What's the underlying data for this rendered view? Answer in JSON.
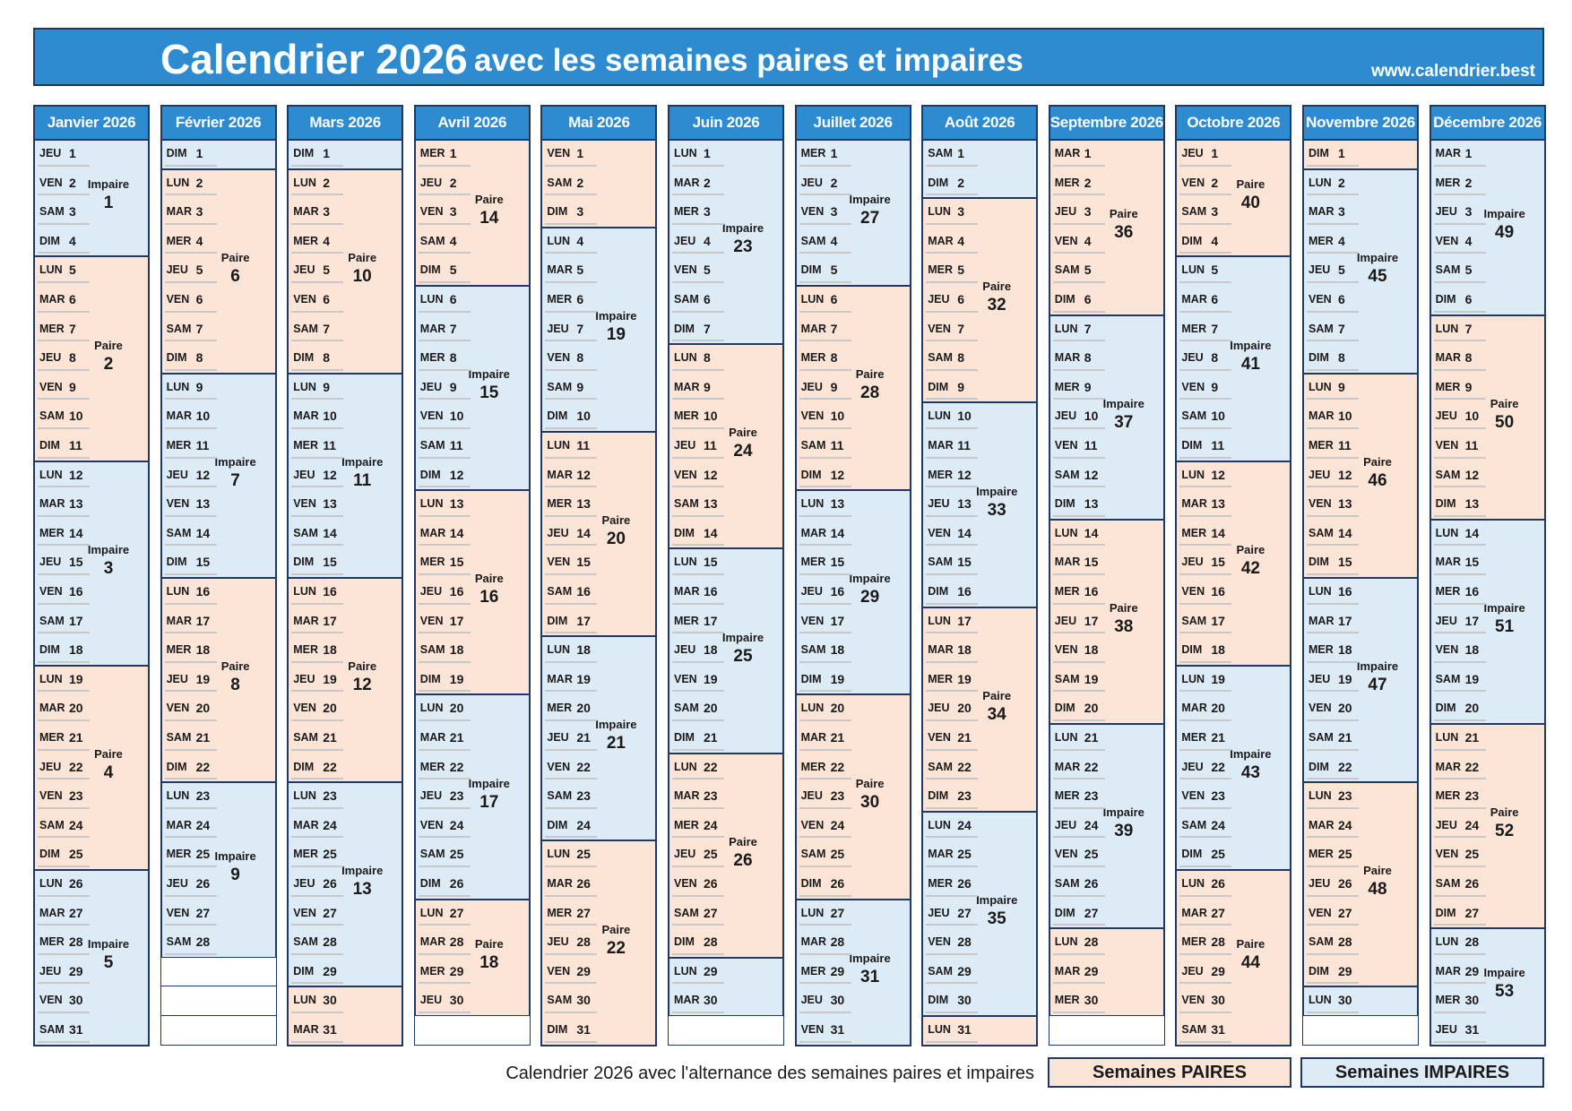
{
  "header": {
    "title_main": "Calendrier 2026",
    "title_sub": "avec les semaines paires et impaires",
    "url": "www.calendrier.best"
  },
  "week_start": "LUN",
  "months": [
    {
      "name": "Janvier 2026",
      "weekdays": [
        "JEU",
        "VEN",
        "SAM",
        "DIM",
        "LUN",
        "MAR",
        "MER",
        "JEU",
        "VEN",
        "SAM",
        "DIM",
        "LUN",
        "MAR",
        "MER",
        "JEU",
        "VEN",
        "SAM",
        "DIM",
        "LUN",
        "MAR",
        "MER",
        "JEU",
        "VEN",
        "SAM",
        "DIM",
        "LUN",
        "MAR",
        "MER",
        "JEU",
        "VEN",
        "SAM"
      ],
      "days": [
        1,
        2,
        3,
        4,
        5,
        6,
        7,
        8,
        9,
        10,
        11,
        12,
        13,
        14,
        15,
        16,
        17,
        18,
        19,
        20,
        21,
        22,
        23,
        24,
        25,
        26,
        27,
        28,
        29,
        30,
        31
      ],
      "weeks": [
        {
          "color": "#ddebf7",
          "label": "Impaire",
          "number": 1
        },
        {
          "color": "#fce4d6",
          "label": "Paire",
          "number": 2
        },
        {
          "color": "#ddebf7",
          "label": "Impaire",
          "number": 3
        },
        {
          "color": "#fce4d6",
          "label": "Paire",
          "number": 4
        },
        {
          "color": "#ddebf7",
          "label": "Impaire",
          "number": 5
        }
      ]
    },
    {
      "name": "Février 2026",
      "weekdays": [
        "DIM",
        "LUN",
        "MAR",
        "MER",
        "JEU",
        "VEN",
        "SAM",
        "DIM",
        "LUN",
        "MAR",
        "MER",
        "JEU",
        "VEN",
        "SAM",
        "DIM",
        "LUN",
        "MAR",
        "MER",
        "JEU",
        "VEN",
        "SAM",
        "DIM",
        "LUN",
        "MAR",
        "MER",
        "JEU",
        "VEN",
        "SAM"
      ],
      "days": [
        1,
        2,
        3,
        4,
        5,
        6,
        7,
        8,
        9,
        10,
        11,
        12,
        13,
        14,
        15,
        16,
        17,
        18,
        19,
        20,
        21,
        22,
        23,
        24,
        25,
        26,
        27,
        28
      ],
      "weeks": [
        {
          "color": "#ddebf7"
        },
        {
          "color": "#fce4d6",
          "label": "Paire",
          "number": 6
        },
        {
          "color": "#ddebf7",
          "label": "Impaire",
          "number": 7
        },
        {
          "color": "#fce4d6",
          "label": "Paire",
          "number": 8
        },
        {
          "color": "#ddebf7",
          "label": "Impaire",
          "number": 9
        }
      ]
    },
    {
      "name": "Mars 2026",
      "weekdays": [
        "DIM",
        "LUN",
        "MAR",
        "MER",
        "JEU",
        "VEN",
        "SAM",
        "DIM",
        "LUN",
        "MAR",
        "MER",
        "JEU",
        "VEN",
        "SAM",
        "DIM",
        "LUN",
        "MAR",
        "MER",
        "JEU",
        "VEN",
        "SAM",
        "DIM",
        "LUN",
        "MAR",
        "MER",
        "JEU",
        "VEN",
        "SAM",
        "DIM",
        "LUN",
        "MAR"
      ],
      "days": [
        1,
        2,
        3,
        4,
        5,
        6,
        7,
        8,
        9,
        10,
        11,
        12,
        13,
        14,
        15,
        16,
        17,
        18,
        19,
        20,
        21,
        22,
        23,
        24,
        25,
        26,
        27,
        28,
        29,
        30,
        31
      ],
      "weeks": [
        {
          "color": "#ddebf7"
        },
        {
          "color": "#fce4d6",
          "label": "Paire",
          "number": 10
        },
        {
          "color": "#ddebf7",
          "label": "Impaire",
          "number": 11
        },
        {
          "color": "#fce4d6",
          "label": "Paire",
          "number": 12
        },
        {
          "color": "#ddebf7",
          "label": "Impaire",
          "number": 13
        },
        {
          "color": "#fce4d6"
        }
      ]
    },
    {
      "name": "Avril 2026",
      "weekdays": [
        "MER",
        "JEU",
        "VEN",
        "SAM",
        "DIM",
        "LUN",
        "MAR",
        "MER",
        "JEU",
        "VEN",
        "SAM",
        "DIM",
        "LUN",
        "MAR",
        "MER",
        "JEU",
        "VEN",
        "SAM",
        "DIM",
        "LUN",
        "MAR",
        "MER",
        "JEU",
        "VEN",
        "SAM",
        "DIM",
        "LUN",
        "MAR",
        "MER",
        "JEU"
      ],
      "days": [
        1,
        2,
        3,
        4,
        5,
        6,
        7,
        8,
        9,
        10,
        11,
        12,
        13,
        14,
        15,
        16,
        17,
        18,
        19,
        20,
        21,
        22,
        23,
        24,
        25,
        26,
        27,
        28,
        29,
        30
      ],
      "weeks": [
        {
          "color": "#fce4d6",
          "label": "Paire",
          "number": 14
        },
        {
          "color": "#ddebf7",
          "label": "Impaire",
          "number": 15
        },
        {
          "color": "#fce4d6",
          "label": "Paire",
          "number": 16
        },
        {
          "color": "#ddebf7",
          "label": "Impaire",
          "number": 17
        },
        {
          "color": "#fce4d6",
          "label": "Paire",
          "number": 18
        }
      ]
    },
    {
      "name": "Mai 2026",
      "weekdays": [
        "VEN",
        "SAM",
        "DIM",
        "LUN",
        "MAR",
        "MER",
        "JEU",
        "VEN",
        "SAM",
        "DIM",
        "LUN",
        "MAR",
        "MER",
        "JEU",
        "VEN",
        "SAM",
        "DIM",
        "LUN",
        "MAR",
        "MER",
        "JEU",
        "VEN",
        "SAM",
        "DIM",
        "LUN",
        "MAR",
        "MER",
        "JEU",
        "VEN",
        "SAM",
        "DIM"
      ],
      "days": [
        1,
        2,
        3,
        4,
        5,
        6,
        7,
        8,
        9,
        10,
        11,
        12,
        13,
        14,
        15,
        16,
        17,
        18,
        19,
        20,
        21,
        22,
        23,
        24,
        25,
        26,
        27,
        28,
        29,
        30,
        31
      ],
      "weeks": [
        {
          "color": "#fce4d6"
        },
        {
          "color": "#ddebf7",
          "label": "Impaire",
          "number": 19
        },
        {
          "color": "#fce4d6",
          "label": "Paire",
          "number": 20
        },
        {
          "color": "#ddebf7",
          "label": "Impaire",
          "number": 21
        },
        {
          "color": "#fce4d6",
          "label": "Paire",
          "number": 22
        }
      ]
    },
    {
      "name": "Juin 2026",
      "weekdays": [
        "LUN",
        "MAR",
        "MER",
        "JEU",
        "VEN",
        "SAM",
        "DIM",
        "LUN",
        "MAR",
        "MER",
        "JEU",
        "VEN",
        "SAM",
        "DIM",
        "LUN",
        "MAR",
        "MER",
        "JEU",
        "VEN",
        "SAM",
        "DIM",
        "LUN",
        "MAR",
        "MER",
        "JEU",
        "VEN",
        "SAM",
        "DIM",
        "LUN",
        "MAR"
      ],
      "days": [
        1,
        2,
        3,
        4,
        5,
        6,
        7,
        8,
        9,
        10,
        11,
        12,
        13,
        14,
        15,
        16,
        17,
        18,
        19,
        20,
        21,
        22,
        23,
        24,
        25,
        26,
        27,
        28,
        29,
        30
      ],
      "weeks": [
        {
          "color": "#ddebf7",
          "label": "Impaire",
          "number": 23
        },
        {
          "color": "#fce4d6",
          "label": "Paire",
          "number": 24
        },
        {
          "color": "#ddebf7",
          "label": "Impaire",
          "number": 25
        },
        {
          "color": "#fce4d6",
          "label": "Paire",
          "number": 26
        },
        {
          "color": "#ddebf7"
        }
      ]
    },
    {
      "name": "Juillet 2026",
      "weekdays": [
        "MER",
        "JEU",
        "VEN",
        "SAM",
        "DIM",
        "LUN",
        "MAR",
        "MER",
        "JEU",
        "VEN",
        "SAM",
        "DIM",
        "LUN",
        "MAR",
        "MER",
        "JEU",
        "VEN",
        "SAM",
        "DIM",
        "LUN",
        "MAR",
        "MER",
        "JEU",
        "VEN",
        "SAM",
        "DIM",
        "LUN",
        "MAR",
        "MER",
        "JEU",
        "VEN"
      ],
      "days": [
        1,
        2,
        3,
        4,
        5,
        6,
        7,
        8,
        9,
        10,
        11,
        12,
        13,
        14,
        15,
        16,
        17,
        18,
        19,
        20,
        21,
        22,
        23,
        24,
        25,
        26,
        27,
        28,
        29,
        30,
        31
      ],
      "weeks": [
        {
          "color": "#ddebf7",
          "label": "Impaire",
          "number": 27
        },
        {
          "color": "#fce4d6",
          "label": "Paire",
          "number": 28
        },
        {
          "color": "#ddebf7",
          "label": "Impaire",
          "number": 29
        },
        {
          "color": "#fce4d6",
          "label": "Paire",
          "number": 30
        },
        {
          "color": "#ddebf7",
          "label": "Impaire",
          "number": 31
        }
      ]
    },
    {
      "name": "Août 2026",
      "weekdays": [
        "SAM",
        "DIM",
        "LUN",
        "MAR",
        "MER",
        "JEU",
        "VEN",
        "SAM",
        "DIM",
        "LUN",
        "MAR",
        "MER",
        "JEU",
        "VEN",
        "SAM",
        "DIM",
        "LUN",
        "MAR",
        "MER",
        "JEU",
        "VEN",
        "SAM",
        "DIM",
        "LUN",
        "MAR",
        "MER",
        "JEU",
        "VEN",
        "SAM",
        "DIM",
        "LUN"
      ],
      "days": [
        1,
        2,
        3,
        4,
        5,
        6,
        7,
        8,
        9,
        10,
        11,
        12,
        13,
        14,
        15,
        16,
        17,
        18,
        19,
        20,
        21,
        22,
        23,
        24,
        25,
        26,
        27,
        28,
        29,
        30,
        31
      ],
      "weeks": [
        {
          "color": "#ddebf7"
        },
        {
          "color": "#fce4d6",
          "label": "Paire",
          "number": 32
        },
        {
          "color": "#ddebf7",
          "label": "Impaire",
          "number": 33
        },
        {
          "color": "#fce4d6",
          "label": "Paire",
          "number": 34
        },
        {
          "color": "#ddebf7",
          "label": "Impaire",
          "number": 35
        },
        {
          "color": "#fce4d6"
        }
      ]
    },
    {
      "name": "Septembre 2026",
      "weekdays": [
        "MAR",
        "MER",
        "JEU",
        "VEN",
        "SAM",
        "DIM",
        "LUN",
        "MAR",
        "MER",
        "JEU",
        "VEN",
        "SAM",
        "DIM",
        "LUN",
        "MAR",
        "MER",
        "JEU",
        "VEN",
        "SAM",
        "DIM",
        "LUN",
        "MAR",
        "MER",
        "JEU",
        "VEN",
        "SAM",
        "DIM",
        "LUN",
        "MAR",
        "MER"
      ],
      "days": [
        1,
        2,
        3,
        4,
        5,
        6,
        7,
        8,
        9,
        10,
        11,
        12,
        13,
        14,
        15,
        16,
        17,
        18,
        19,
        20,
        21,
        22,
        23,
        24,
        25,
        26,
        27,
        28,
        29,
        30
      ],
      "weeks": [
        {
          "color": "#fce4d6",
          "label": "Paire",
          "number": 36
        },
        {
          "color": "#ddebf7",
          "label": "Impaire",
          "number": 37
        },
        {
          "color": "#fce4d6",
          "label": "Paire",
          "number": 38
        },
        {
          "color": "#ddebf7",
          "label": "Impaire",
          "number": 39
        },
        {
          "color": "#fce4d6"
        }
      ]
    },
    {
      "name": "Octobre 2026",
      "weekdays": [
        "JEU",
        "VEN",
        "SAM",
        "DIM",
        "LUN",
        "MAR",
        "MER",
        "JEU",
        "VEN",
        "SAM",
        "DIM",
        "LUN",
        "MAR",
        "MER",
        "JEU",
        "VEN",
        "SAM",
        "DIM",
        "LUN",
        "MAR",
        "MER",
        "JEU",
        "VEN",
        "SAM",
        "DIM",
        "LUN",
        "MAR",
        "MER",
        "JEU",
        "VEN",
        "SAM"
      ],
      "days": [
        1,
        2,
        3,
        4,
        5,
        6,
        7,
        8,
        9,
        10,
        11,
        12,
        13,
        14,
        15,
        16,
        17,
        18,
        19,
        20,
        21,
        22,
        23,
        24,
        25,
        26,
        27,
        28,
        29,
        30,
        31
      ],
      "weeks": [
        {
          "color": "#fce4d6",
          "label": "Paire",
          "number": 40
        },
        {
          "color": "#ddebf7",
          "label": "Impaire",
          "number": 41
        },
        {
          "color": "#fce4d6",
          "label": "Paire",
          "number": 42
        },
        {
          "color": "#ddebf7",
          "label": "Impaire",
          "number": 43
        },
        {
          "color": "#fce4d6",
          "label": "Paire",
          "number": 44
        }
      ]
    },
    {
      "name": "Novembre 2026",
      "weekdays": [
        "DIM",
        "LUN",
        "MAR",
        "MER",
        "JEU",
        "VEN",
        "SAM",
        "DIM",
        "LUN",
        "MAR",
        "MER",
        "JEU",
        "VEN",
        "SAM",
        "DIM",
        "LUN",
        "MAR",
        "MER",
        "JEU",
        "VEN",
        "SAM",
        "DIM",
        "LUN",
        "MAR",
        "MER",
        "JEU",
        "VEN",
        "SAM",
        "DIM",
        "LUN"
      ],
      "days": [
        1,
        2,
        3,
        4,
        5,
        6,
        7,
        8,
        9,
        10,
        11,
        12,
        13,
        14,
        15,
        16,
        17,
        18,
        19,
        20,
        21,
        22,
        23,
        24,
        25,
        26,
        27,
        28,
        29,
        30
      ],
      "weeks": [
        {
          "color": "#fce4d6"
        },
        {
          "color": "#ddebf7",
          "label": "Impaire",
          "number": 45
        },
        {
          "color": "#fce4d6",
          "label": "Paire",
          "number": 46
        },
        {
          "color": "#ddebf7",
          "label": "Impaire",
          "number": 47
        },
        {
          "color": "#fce4d6",
          "label": "Paire",
          "number": 48
        },
        {
          "color": "#ddebf7"
        }
      ]
    },
    {
      "name": "Décembre 2026",
      "weekdays": [
        "MAR",
        "MER",
        "JEU",
        "VEN",
        "SAM",
        "DIM",
        "LUN",
        "MAR",
        "MER",
        "JEU",
        "VEN",
        "SAM",
        "DIM",
        "LUN",
        "MAR",
        "MER",
        "JEU",
        "VEN",
        "SAM",
        "DIM",
        "LUN",
        "MAR",
        "MER",
        "JEU",
        "VEN",
        "SAM",
        "DIM",
        "LUN",
        "MAR",
        "MER",
        "JEU"
      ],
      "days": [
        1,
        2,
        3,
        4,
        5,
        6,
        7,
        8,
        9,
        10,
        11,
        12,
        13,
        14,
        15,
        16,
        17,
        18,
        19,
        20,
        21,
        22,
        23,
        24,
        25,
        26,
        27,
        28,
        29,
        30,
        31
      ],
      "weeks": [
        {
          "color": "#ddebf7",
          "label": "Impaire",
          "number": 49
        },
        {
          "color": "#fce4d6",
          "label": "Paire",
          "number": 50
        },
        {
          "color": "#ddebf7",
          "label": "Impaire",
          "number": 51
        },
        {
          "color": "#fce4d6",
          "label": "Paire",
          "number": 52
        },
        {
          "color": "#ddebf7",
          "label": "Impaire",
          "number": 53
        }
      ]
    }
  ],
  "footer": {
    "text": "Calendrier 2026 avec l'alternance des semaines paires et impaires",
    "legend": [
      {
        "label": "Semaines PAIRES",
        "color": "#fce4d6"
      },
      {
        "label": "Semaines IMPAIRES",
        "color": "#ddebf7"
      }
    ]
  }
}
